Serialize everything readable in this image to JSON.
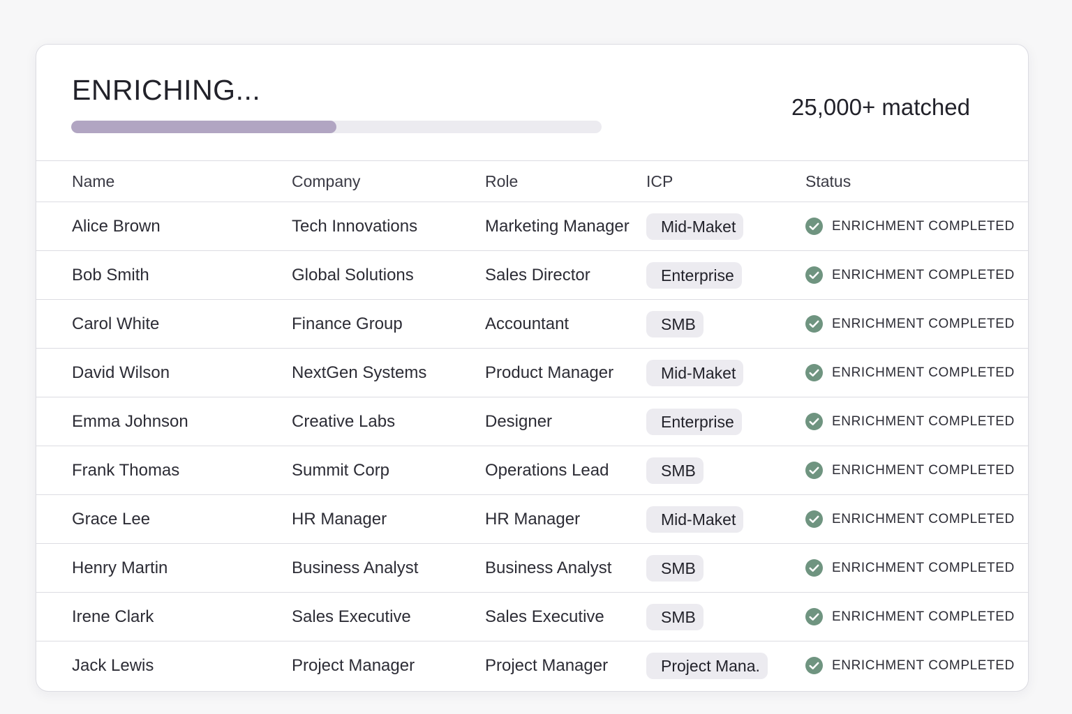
{
  "header": {
    "title": "ENRICHING...",
    "progress_fraction": 0.5,
    "matched_text": "25,000+ matched"
  },
  "colors": {
    "progress_fill": "#b1a5c2",
    "progress_track": "#ecebf0",
    "check_fill": "#6f9480",
    "pill_bg": "#ecebf0"
  },
  "table": {
    "columns": [
      "Name",
      "Company",
      "Role",
      "ICP",
      "Status"
    ],
    "rows": [
      {
        "name": "Alice Brown",
        "company": "Tech Innovations",
        "role": "Marketing Manager",
        "icp": "Mid-Maket",
        "status": "ENRICHMENT COMPLETED",
        "status_icon": "check-circle-icon"
      },
      {
        "name": "Bob Smith",
        "company": "Global Solutions",
        "role": "Sales Director",
        "icp": "Enterprise",
        "status": "ENRICHMENT COMPLETED",
        "status_icon": "check-circle-icon"
      },
      {
        "name": "Carol White",
        "company": "Finance Group",
        "role": "Accountant",
        "icp": "SMB",
        "status": "ENRICHMENT COMPLETED",
        "status_icon": "check-circle-icon"
      },
      {
        "name": "David Wilson",
        "company": "NextGen Systems",
        "role": "Product Manager",
        "icp": "Mid-Maket",
        "status": "ENRICHMENT COMPLETED",
        "status_icon": "check-circle-icon"
      },
      {
        "name": "Emma Johnson",
        "company": "Creative Labs",
        "role": "Designer",
        "icp": "Enterprise",
        "status": "ENRICHMENT COMPLETED",
        "status_icon": "check-circle-icon"
      },
      {
        "name": "Frank Thomas",
        "company": "Summit Corp",
        "role": "Operations Lead",
        "icp": "SMB",
        "status": "ENRICHMENT COMPLETED",
        "status_icon": "check-circle-icon"
      },
      {
        "name": "Grace Lee",
        "company": "HR Manager",
        "role": "HR Manager",
        "icp": "Mid-Maket",
        "status": "ENRICHMENT COMPLETED",
        "status_icon": "check-circle-icon"
      },
      {
        "name": "Henry Martin",
        "company": "Business Analyst",
        "role": "Business Analyst",
        "icp": "SMB",
        "status": "ENRICHMENT COMPLETED",
        "status_icon": "check-circle-icon"
      },
      {
        "name": "Irene Clark",
        "company": "Sales Executive",
        "role": "Sales Executive",
        "icp": "SMB",
        "status": "ENRICHMENT COMPLETED",
        "status_icon": "check-circle-icon"
      },
      {
        "name": "Jack Lewis",
        "company": "Project Manager",
        "role": "Project Manager",
        "icp": "Project Mana.",
        "status": "ENRICHMENT COMPLETED",
        "status_icon": "check-circle-icon"
      }
    ]
  }
}
